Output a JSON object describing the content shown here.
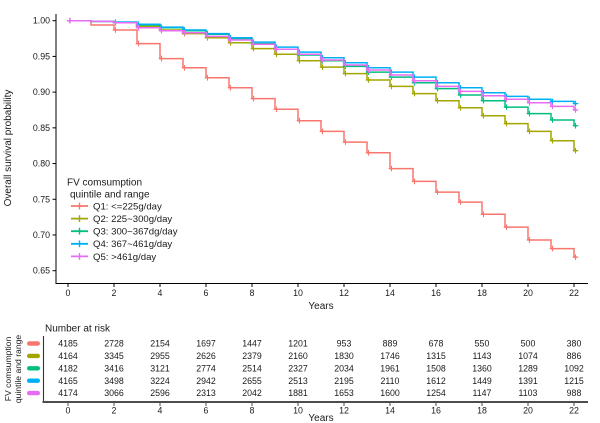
{
  "main_plot": {
    "ylabel": "Overall survival probability",
    "xlabel": "Years",
    "y_tick_labels": [
      "1.00",
      "0.95",
      "0.90",
      "0.85",
      "0.80",
      "0.75",
      "0.70",
      "0.65"
    ],
    "x_tick_labels": [
      "0",
      "2",
      "4",
      "6",
      "8",
      "10",
      "12",
      "14",
      "16",
      "18",
      "20",
      "22"
    ]
  },
  "legend": {
    "title_line1": "FV comsumption",
    "title_line2": "quintile and range",
    "entries": [
      {
        "label": "Q1: <=225g/day",
        "color": "#F8766D"
      },
      {
        "label": "Q2: 225~300g/day",
        "color": "#A3A500"
      },
      {
        "label": "Q3: 300~367dg/day",
        "color": "#00BF7D"
      },
      {
        "label": "Q4: 367~461g/day",
        "color": "#00B0F6"
      },
      {
        "label": "Q5: >461g/day",
        "color": "#E76BF3"
      }
    ]
  },
  "risk_table": {
    "title": "Number at risk",
    "ylabel_line1": "FV comsumption",
    "ylabel_line2": "quintile and range",
    "xlabel": "Years",
    "x_tick_labels": [
      "0",
      "2",
      "4",
      "6",
      "8",
      "10",
      "12",
      "14",
      "16",
      "18",
      "20",
      "22"
    ]
  },
  "chart_data": [
    {
      "type": "line",
      "subtype": "kaplan-meier-step",
      "title": "",
      "xlabel": "Years",
      "ylabel": "Overall survival probability",
      "xlim": [
        0,
        22
      ],
      "ylim": [
        0.65,
        1.0
      ],
      "grid": false,
      "legend_position": "inside-lower-left",
      "legend_title": "FV comsumption quintile and range",
      "x": [
        0,
        1,
        2,
        3,
        4,
        5,
        6,
        7,
        8,
        9,
        10,
        11,
        12,
        13,
        14,
        15,
        16,
        17,
        18,
        19,
        20,
        21,
        22
      ],
      "series": [
        {
          "name": "Q1: <=225g/day",
          "color": "#F8766D",
          "values": [
            1.0,
            0.994,
            0.987,
            0.968,
            0.947,
            0.934,
            0.92,
            0.906,
            0.891,
            0.876,
            0.86,
            0.845,
            0.83,
            0.815,
            0.793,
            0.775,
            0.76,
            0.746,
            0.729,
            0.711,
            0.693,
            0.681,
            0.669
          ]
        },
        {
          "name": "Q2: 225~300g/day",
          "color": "#A3A500",
          "values": [
            1.0,
            0.999,
            0.997,
            0.992,
            0.987,
            0.982,
            0.976,
            0.969,
            0.961,
            0.953,
            0.944,
            0.935,
            0.926,
            0.917,
            0.908,
            0.898,
            0.888,
            0.878,
            0.867,
            0.856,
            0.845,
            0.832,
            0.818
          ]
        },
        {
          "name": "Q3: 300~367dg/day",
          "color": "#00BF7D",
          "values": [
            1.0,
            0.999,
            0.998,
            0.994,
            0.99,
            0.986,
            0.981,
            0.975,
            0.968,
            0.96,
            0.952,
            0.944,
            0.936,
            0.928,
            0.921,
            0.913,
            0.905,
            0.896,
            0.888,
            0.879,
            0.87,
            0.861,
            0.853
          ]
        },
        {
          "name": "Q4: 367~461g/day",
          "color": "#00B0F6",
          "values": [
            1.0,
            0.999,
            0.998,
            0.995,
            0.991,
            0.987,
            0.982,
            0.976,
            0.97,
            0.963,
            0.956,
            0.948,
            0.941,
            0.934,
            0.928,
            0.921,
            0.913,
            0.906,
            0.899,
            0.894,
            0.89,
            0.887,
            0.884
          ]
        },
        {
          "name": "Q5: >461g/day",
          "color": "#E76BF3",
          "values": [
            1.0,
            0.999,
            0.997,
            0.99,
            0.986,
            0.983,
            0.978,
            0.973,
            0.967,
            0.96,
            0.953,
            0.945,
            0.938,
            0.931,
            0.924,
            0.916,
            0.908,
            0.901,
            0.895,
            0.89,
            0.885,
            0.88,
            0.875
          ]
        }
      ]
    },
    {
      "type": "table",
      "title": "Number at risk",
      "categories": [
        0,
        2,
        4,
        6,
        8,
        10,
        12,
        14,
        16,
        18,
        20,
        22
      ],
      "rows": [
        {
          "name": "Q1: <=225g/day",
          "color": "#F8766D",
          "values": [
            4185,
            2728,
            2154,
            1697,
            1447,
            1201,
            953,
            889,
            678,
            550,
            500,
            380
          ]
        },
        {
          "name": "Q2: 225~300g/day",
          "color": "#A3A500",
          "values": [
            4164,
            3345,
            2955,
            2626,
            2379,
            2160,
            1830,
            1746,
            1315,
            1143,
            1074,
            886
          ]
        },
        {
          "name": "Q3: 300~367dg/day",
          "color": "#00BF7D",
          "values": [
            4182,
            3416,
            3121,
            2774,
            2514,
            2327,
            2034,
            1961,
            1508,
            1360,
            1289,
            1092
          ]
        },
        {
          "name": "Q4: 367~461g/day",
          "color": "#00B0F6",
          "values": [
            4165,
            3498,
            3224,
            2942,
            2655,
            2513,
            2195,
            2110,
            1612,
            1449,
            1391,
            1215
          ]
        },
        {
          "name": "Q5: >461g/day",
          "color": "#E76BF3",
          "values": [
            4174,
            3066,
            2596,
            2313,
            2042,
            1881,
            1653,
            1600,
            1254,
            1147,
            1103,
            988
          ]
        }
      ]
    }
  ]
}
